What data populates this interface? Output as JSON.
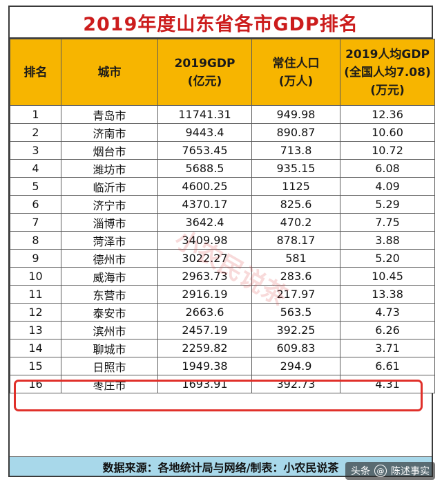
{
  "title": "2019年度山东省各市GDP排名",
  "headers": {
    "rank": "排名",
    "city": "城市",
    "gdp_line1": "2019GDP",
    "gdp_line2": "(亿元)",
    "pop_line1": "常住人口",
    "pop_line2": "(万人)",
    "percap_line1": "2019人均GDP",
    "percap_line2": "(全国人均7.08)",
    "percap_line3": "(万元)"
  },
  "rows": [
    {
      "rank": "1",
      "city": "青岛市",
      "gdp": "11741.31",
      "pop": "949.98",
      "percap": "12.36"
    },
    {
      "rank": "2",
      "city": "济南市",
      "gdp": "9443.4",
      "pop": "890.87",
      "percap": "10.60"
    },
    {
      "rank": "3",
      "city": "烟台市",
      "gdp": "7653.45",
      "pop": "713.8",
      "percap": "10.72"
    },
    {
      "rank": "4",
      "city": "潍坊市",
      "gdp": "5688.5",
      "pop": "935.15",
      "percap": "6.08"
    },
    {
      "rank": "5",
      "city": "临沂市",
      "gdp": "4600.25",
      "pop": "1125",
      "percap": "4.09"
    },
    {
      "rank": "6",
      "city": "济宁市",
      "gdp": "4370.17",
      "pop": "825.6",
      "percap": "5.29"
    },
    {
      "rank": "7",
      "city": "淄博市",
      "gdp": "3642.4",
      "pop": "470.2",
      "percap": "7.75"
    },
    {
      "rank": "8",
      "city": "菏泽市",
      "gdp": "3409.98",
      "pop": "878.17",
      "percap": "3.88"
    },
    {
      "rank": "9",
      "city": "德州市",
      "gdp": "3022.27",
      "pop": "581",
      "percap": "5.20"
    },
    {
      "rank": "10",
      "city": "威海市",
      "gdp": "2963.73",
      "pop": "283.6",
      "percap": "10.45"
    },
    {
      "rank": "11",
      "city": "东营市",
      "gdp": "2916.19",
      "pop": "217.97",
      "percap": "13.38"
    },
    {
      "rank": "12",
      "city": "泰安市",
      "gdp": "2663.6",
      "pop": "563.5",
      "percap": "4.73"
    },
    {
      "rank": "13",
      "city": "滨州市",
      "gdp": "2457.19",
      "pop": "392.25",
      "percap": "6.26"
    },
    {
      "rank": "14",
      "city": "聊城市",
      "gdp": "2259.82",
      "pop": "609.83",
      "percap": "3.71"
    },
    {
      "rank": "15",
      "city": "日照市",
      "gdp": "1949.38",
      "pop": "294.9",
      "percap": "6.61"
    },
    {
      "rank": "16",
      "city": "枣庄市",
      "gdp": "1693.91",
      "pop": "392.73",
      "percap": "4.31"
    }
  ],
  "footer": "数据来源：各地统计局与网络/制表：小农民说茶",
  "watermark": "小农民说茶",
  "badge": {
    "prefix": "头条",
    "account": "陈述事实"
  },
  "colors": {
    "title": "#cc1c1c",
    "header_bg": "#f7b500",
    "footer_bg": "#a8d8ea",
    "highlight": "#e0302a"
  }
}
